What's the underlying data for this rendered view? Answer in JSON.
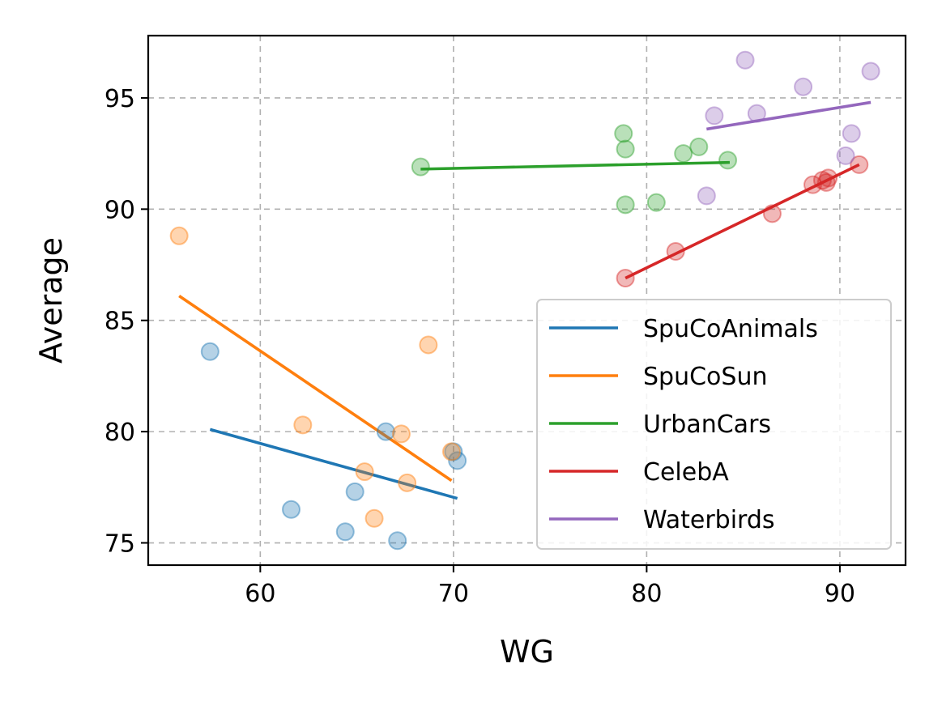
{
  "chart_data": {
    "type": "scatter",
    "xlabel": "WG",
    "ylabel": "Average",
    "xlim": [
      54.2,
      93.4
    ],
    "ylim": [
      74.0,
      97.8
    ],
    "xticks": [
      60,
      70,
      80,
      90
    ],
    "yticks": [
      75,
      80,
      85,
      90,
      95
    ],
    "grid": true,
    "legend_position": "lower-right",
    "series": [
      {
        "name": "SpuCoAnimals",
        "color": "#1f77b4",
        "points": [
          [
            57.4,
            83.6
          ],
          [
            61.6,
            76.5
          ],
          [
            64.4,
            75.5
          ],
          [
            64.9,
            77.3
          ],
          [
            66.5,
            80.0
          ],
          [
            67.1,
            75.1
          ],
          [
            70.0,
            79.1
          ],
          [
            70.2,
            78.7
          ]
        ],
        "fit": [
          [
            57.4,
            80.1
          ],
          [
            70.2,
            77.0
          ]
        ]
      },
      {
        "name": "SpuCoSun",
        "color": "#ff7f0e",
        "points": [
          [
            55.8,
            88.8
          ],
          [
            62.2,
            80.3
          ],
          [
            65.4,
            78.2
          ],
          [
            65.9,
            76.1
          ],
          [
            67.3,
            79.9
          ],
          [
            67.6,
            77.7
          ],
          [
            68.7,
            83.9
          ],
          [
            69.9,
            79.1
          ]
        ],
        "fit": [
          [
            55.8,
            86.1
          ],
          [
            69.9,
            77.8
          ]
        ]
      },
      {
        "name": "UrbanCars",
        "color": "#2ca02c",
        "points": [
          [
            68.3,
            91.9
          ],
          [
            78.8,
            93.4
          ],
          [
            78.9,
            90.2
          ],
          [
            78.9,
            92.7
          ],
          [
            80.5,
            90.3
          ],
          [
            81.9,
            92.5
          ],
          [
            82.7,
            92.8
          ],
          [
            84.2,
            92.2
          ]
        ],
        "fit": [
          [
            68.3,
            91.8
          ],
          [
            84.3,
            92.1
          ]
        ]
      },
      {
        "name": "CelebA",
        "color": "#d62728",
        "points": [
          [
            78.9,
            86.9
          ],
          [
            81.5,
            88.1
          ],
          [
            86.5,
            89.8
          ],
          [
            88.6,
            91.1
          ],
          [
            89.1,
            91.3
          ],
          [
            89.3,
            91.2
          ],
          [
            89.4,
            91.4
          ],
          [
            91.0,
            92.0
          ]
        ],
        "fit": [
          [
            78.9,
            86.9
          ],
          [
            91.0,
            92.0
          ]
        ]
      },
      {
        "name": "Waterbirds",
        "color": "#9467bd",
        "points": [
          [
            83.1,
            90.6
          ],
          [
            83.5,
            94.2
          ],
          [
            85.1,
            96.7
          ],
          [
            85.7,
            94.3
          ],
          [
            88.1,
            95.5
          ],
          [
            90.3,
            92.4
          ],
          [
            90.6,
            93.4
          ],
          [
            91.6,
            96.2
          ]
        ],
        "fit": [
          [
            83.1,
            93.6
          ],
          [
            91.6,
            94.8
          ]
        ]
      }
    ]
  }
}
